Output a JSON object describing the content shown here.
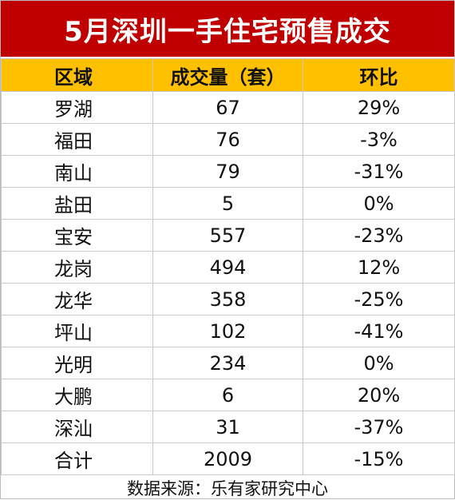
{
  "title": "5月深圳一手住宅预售成交",
  "table": {
    "header": [
      "区域",
      "成交量（套）",
      "环比"
    ],
    "rows": [
      [
        "罗湖",
        67,
        "29%"
      ],
      [
        "福田",
        76,
        "-3%"
      ],
      [
        "南山",
        79,
        "-31%"
      ],
      [
        "盐田",
        5,
        "0%"
      ],
      [
        "宝安",
        557,
        "-23%"
      ],
      [
        "龙岗",
        494,
        "12%"
      ],
      [
        "龙华",
        358,
        "-25%"
      ],
      [
        "坪山",
        102,
        "-41%"
      ],
      [
        "光明",
        234,
        "0%"
      ],
      [
        "大鹏",
        6,
        "20%"
      ],
      [
        "深汕",
        31,
        "-37%"
      ],
      [
        "合计",
        2009,
        "-15%"
      ]
    ]
  },
  "source": "数据来源：乐有家研究中心"
}
